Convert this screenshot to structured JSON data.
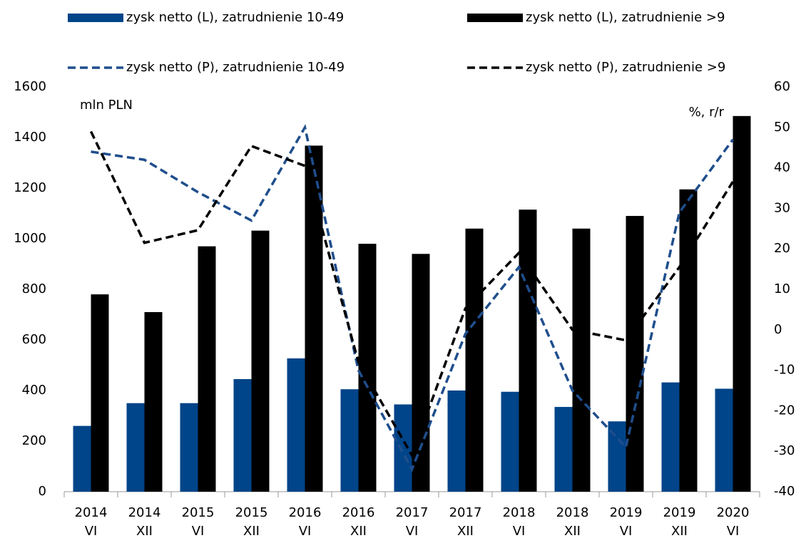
{
  "chart_data": {
    "type": "bar",
    "categories": [
      [
        "2014",
        "VI"
      ],
      [
        "2014",
        "XII"
      ],
      [
        "2015",
        "VI"
      ],
      [
        "2015",
        "XII"
      ],
      [
        "2016",
        "VI"
      ],
      [
        "2016",
        "XII"
      ],
      [
        "2017",
        "VI"
      ],
      [
        "2017",
        "XII"
      ],
      [
        "2018",
        "VI"
      ],
      [
        "2018",
        "XII"
      ],
      [
        "2019",
        "VI"
      ],
      [
        "2019",
        "XII"
      ],
      [
        "2020",
        "VI"
      ]
    ],
    "series": [
      {
        "name": "zysk netto (L), zatrudnienie 10-49",
        "type": "bar",
        "axis": "y",
        "color": "#004489",
        "values": [
          260,
          350,
          350,
          445,
          527,
          405,
          345,
          400,
          395,
          335,
          278,
          432,
          407
        ]
      },
      {
        "name": "zysk netto (L), zatrudnienie >9",
        "type": "bar",
        "axis": "y",
        "color": "#000000",
        "values": [
          780,
          710,
          970,
          1032,
          1368,
          980,
          940,
          1040,
          1115,
          1040,
          1090,
          1195,
          1485
        ]
      },
      {
        "name": "zysk netto (P), zatrudnienie 10-49",
        "type": "line",
        "axis": "y2",
        "color": "#1f4e8c",
        "dash": true,
        "values": [
          44,
          42,
          34,
          27,
          50,
          -10,
          -34.5,
          -1,
          15.5,
          -15,
          -29,
          29,
          47
        ]
      },
      {
        "name": "zysk netto (P), zatrudnienie >9",
        "type": "line",
        "axis": "y2",
        "color": "#000000",
        "dash": true,
        "values": [
          49,
          21.5,
          24.6,
          45.4,
          40.5,
          -8,
          -31,
          5.3,
          19,
          0,
          -2.6,
          15.5,
          36.6
        ]
      }
    ],
    "y_unit_label": "mln PLN",
    "y2_unit_label": "%, r/r",
    "ylim": [
      0,
      1600
    ],
    "yticks": [
      0,
      200,
      400,
      600,
      800,
      1000,
      1200,
      1400,
      1600
    ],
    "y2lim": [
      -40,
      60
    ],
    "y2ticks": [
      -40,
      -30,
      -20,
      -10,
      0,
      10,
      20,
      30,
      40,
      50,
      60
    ],
    "grid": false
  }
}
